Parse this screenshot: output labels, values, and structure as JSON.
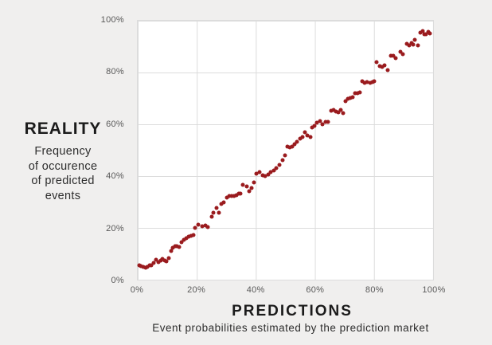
{
  "colors": {
    "background": "#f0efee",
    "plot_background": "#ffffff",
    "gridline": "#dcdcdc",
    "point": "#9a1b1e",
    "tick_text": "#595959",
    "title_text": "#1b1b1b"
  },
  "y_axis": {
    "title": "REALITY",
    "subtitle_lines": [
      "Frequency",
      "of occurence",
      "of predicted",
      "events"
    ],
    "tick_labels": [
      "100%",
      "80%",
      "60%",
      "40%",
      "20%",
      "0%"
    ]
  },
  "x_axis": {
    "title": "PREDICTIONS",
    "subtitle": "Event probabilities estimated by the prediction market",
    "tick_labels": [
      "0%",
      "20%",
      "40%",
      "60%",
      "80%",
      "100%"
    ]
  },
  "chart_data": {
    "type": "scatter",
    "title": "",
    "xlabel": "PREDICTIONS — Event probabilities estimated by the prediction market",
    "ylabel": "REALITY — Frequency of occurence of predicted events",
    "xlim": [
      0,
      100
    ],
    "ylim": [
      0,
      100
    ],
    "x_ticks": [
      0,
      20,
      40,
      60,
      80,
      100
    ],
    "y_ticks": [
      0,
      20,
      40,
      60,
      80,
      100
    ],
    "grid": true,
    "legend": null,
    "marker_color": "#9a1b1e",
    "points": [
      [
        0.5,
        5.6
      ],
      [
        1.2,
        5.3
      ],
      [
        1.9,
        5.0
      ],
      [
        2.6,
        4.6
      ],
      [
        3.3,
        4.8
      ],
      [
        4.0,
        5.4
      ],
      [
        4.7,
        5.6
      ],
      [
        5.5,
        6.6
      ],
      [
        6.3,
        7.8
      ],
      [
        7.0,
        6.9
      ],
      [
        7.7,
        7.5
      ],
      [
        8.4,
        7.9
      ],
      [
        9.1,
        7.3
      ],
      [
        9.8,
        7.0
      ],
      [
        10.5,
        8.3
      ],
      [
        11.2,
        11.0
      ],
      [
        11.9,
        12.2
      ],
      [
        12.6,
        12.8
      ],
      [
        13.3,
        13.0
      ],
      [
        14.0,
        12.5
      ],
      [
        14.8,
        14.4
      ],
      [
        15.6,
        15.3
      ],
      [
        16.4,
        16.1
      ],
      [
        17.2,
        16.6
      ],
      [
        18.0,
        16.9
      ],
      [
        18.8,
        17.1
      ],
      [
        19.5,
        20.1
      ],
      [
        20.6,
        21.1
      ],
      [
        21.8,
        20.5
      ],
      [
        22.9,
        20.8
      ],
      [
        23.8,
        20.4
      ],
      [
        25.0,
        24.2
      ],
      [
        25.6,
        25.9
      ],
      [
        26.6,
        27.6
      ],
      [
        27.5,
        25.8
      ],
      [
        28.2,
        29.1
      ],
      [
        29.1,
        29.8
      ],
      [
        30.2,
        31.7
      ],
      [
        31.1,
        32.3
      ],
      [
        31.9,
        32.2
      ],
      [
        32.6,
        32.3
      ],
      [
        33.3,
        32.6
      ],
      [
        34.1,
        33.1
      ],
      [
        34.8,
        33.1
      ],
      [
        35.7,
        36.7
      ],
      [
        36.8,
        36.0
      ],
      [
        37.7,
        34.1
      ],
      [
        38.6,
        35.4
      ],
      [
        39.3,
        37.4
      ],
      [
        40.2,
        40.8
      ],
      [
        41.2,
        41.6
      ],
      [
        42.2,
        40.3
      ],
      [
        43.2,
        40.1
      ],
      [
        44.1,
        40.7
      ],
      [
        45.0,
        41.4
      ],
      [
        46.0,
        42.1
      ],
      [
        47.0,
        43.2
      ],
      [
        48.0,
        44.3
      ],
      [
        49.0,
        46.3
      ],
      [
        49.8,
        48.0
      ],
      [
        50.6,
        51.5
      ],
      [
        51.5,
        51.0
      ],
      [
        52.3,
        51.5
      ],
      [
        53.1,
        52.3
      ],
      [
        54.0,
        53.2
      ],
      [
        54.9,
        54.5
      ],
      [
        55.8,
        55.0
      ],
      [
        56.7,
        56.8
      ],
      [
        57.5,
        55.7
      ],
      [
        58.4,
        55.0
      ],
      [
        59.1,
        58.8
      ],
      [
        59.9,
        59.5
      ],
      [
        60.7,
        60.6
      ],
      [
        61.6,
        61.3
      ],
      [
        62.6,
        59.9
      ],
      [
        63.5,
        61.0
      ],
      [
        64.5,
        60.9
      ],
      [
        65.5,
        65.3
      ],
      [
        66.3,
        65.6
      ],
      [
        67.1,
        64.8
      ],
      [
        67.9,
        64.6
      ],
      [
        68.7,
        65.5
      ],
      [
        69.5,
        64.4
      ],
      [
        70.4,
        69.0
      ],
      [
        71.2,
        69.9
      ],
      [
        72.0,
        70.3
      ],
      [
        72.8,
        70.5
      ],
      [
        73.6,
        72.1
      ],
      [
        74.4,
        71.9
      ],
      [
        75.2,
        72.2
      ],
      [
        76.1,
        76.5
      ],
      [
        76.9,
        75.9
      ],
      [
        77.7,
        76.2
      ],
      [
        78.6,
        75.9
      ],
      [
        79.4,
        76.2
      ],
      [
        80.1,
        76.7
      ],
      [
        80.9,
        84.0
      ],
      [
        81.9,
        82.5
      ],
      [
        82.7,
        82.1
      ],
      [
        83.5,
        82.9
      ],
      [
        84.6,
        80.9
      ],
      [
        85.6,
        86.6
      ],
      [
        86.5,
        86.6
      ],
      [
        87.4,
        85.5
      ],
      [
        88.9,
        88.0
      ],
      [
        89.8,
        87.0
      ],
      [
        91.0,
        91.2
      ],
      [
        91.8,
        90.6
      ],
      [
        92.6,
        91.4
      ],
      [
        93.3,
        90.8
      ],
      [
        93.9,
        92.6
      ],
      [
        94.8,
        90.4
      ],
      [
        95.7,
        95.3
      ],
      [
        96.4,
        96.0
      ],
      [
        97.0,
        94.9
      ],
      [
        97.7,
        94.8
      ],
      [
        98.4,
        95.8
      ],
      [
        98.9,
        95.2
      ]
    ]
  }
}
